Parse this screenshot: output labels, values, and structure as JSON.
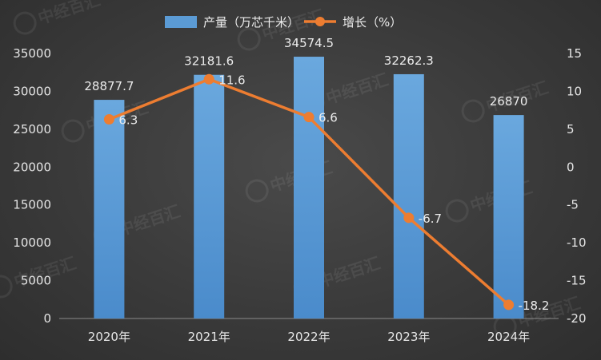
{
  "chart_data": {
    "type": "bar+line",
    "categories": [
      "2020年",
      "2021年",
      "2022年",
      "2023年",
      "2024年"
    ],
    "series": [
      {
        "name": "产量（万芯千米）",
        "type": "bar",
        "axis": "left",
        "color": "#5b9bd5",
        "values": [
          28877.7,
          32181.6,
          34574.5,
          32262.3,
          26870
        ],
        "labels": [
          "28877.7",
          "32181.6",
          "34574.5",
          "32262.3",
          "26870"
        ]
      },
      {
        "name": "增长（%）",
        "type": "line",
        "axis": "right",
        "color": "#ed7d31",
        "values": [
          6.3,
          11.6,
          6.6,
          -6.7,
          -18.2
        ],
        "labels": [
          "6.3",
          "11.6",
          "6.6",
          "-6.7",
          "-18.2"
        ]
      }
    ],
    "y_left": {
      "min": 0,
      "max": 35000,
      "step": 5000,
      "ticks": [
        "0",
        "5000",
        "10000",
        "15000",
        "20000",
        "25000",
        "30000",
        "35000"
      ]
    },
    "y_right": {
      "min": -20,
      "max": 15,
      "step": 5,
      "ticks": [
        "-20",
        "-15",
        "-10",
        "-5",
        "0",
        "5",
        "10",
        "15"
      ]
    },
    "legend_position": "top-center",
    "grid": false
  },
  "watermark": {
    "text": "中经百汇"
  }
}
